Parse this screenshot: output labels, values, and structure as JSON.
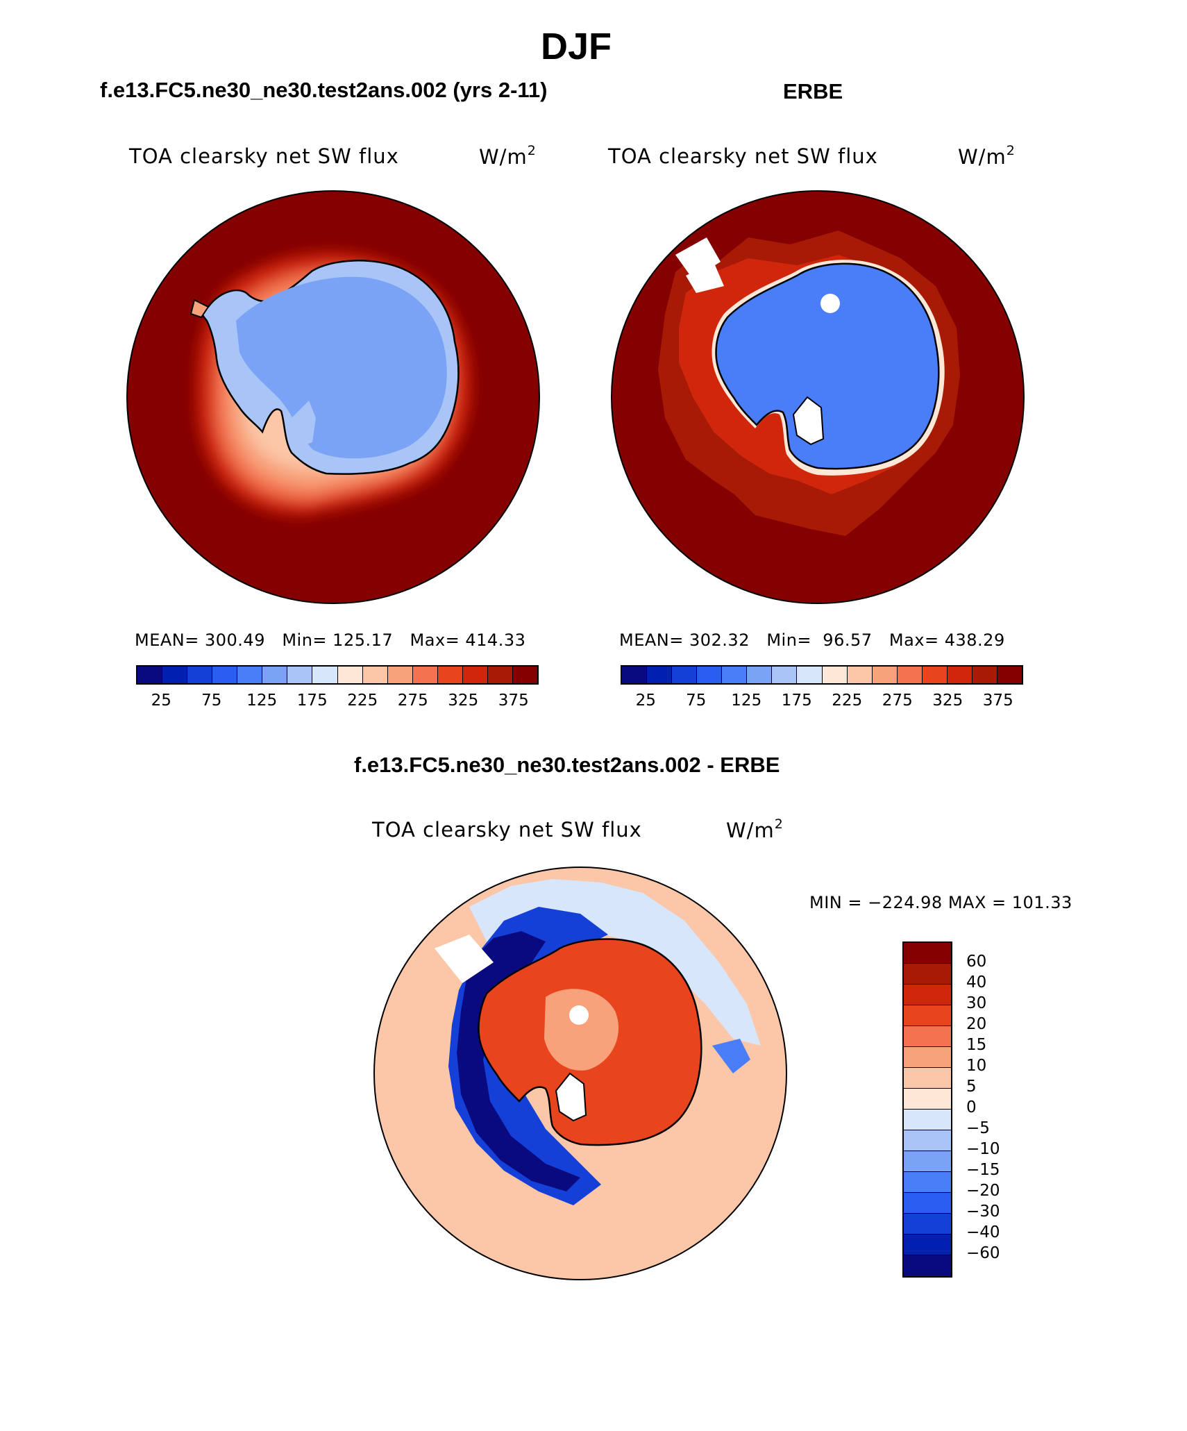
{
  "title": "DJF",
  "panels": {
    "left": {
      "heading": "f.e13.FC5.ne30_ne30.test2ans.002 (yrs 2-11)",
      "variable": "TOA clearsky net SW flux",
      "units": "W/m",
      "units_exp": "2",
      "stats_line": "MEAN= 300.49   Min= 125.17   Max= 414.33",
      "mean": 300.49,
      "min": 125.17,
      "max": 414.33
    },
    "right": {
      "heading": "ERBE",
      "variable": "TOA clearsky net SW flux",
      "units": "W/m",
      "units_exp": "2",
      "stats_line": "MEAN= 302.32   Min=  96.57   Max= 438.29",
      "mean": 302.32,
      "min": 96.57,
      "max": 438.29
    },
    "diff": {
      "heading": "f.e13.FC5.ne30_ne30.test2ans.002 - ERBE",
      "variable": "TOA clearsky net SW flux",
      "units": "W/m",
      "units_exp": "2",
      "minmax_line": "MIN = −224.98 MAX = 101.33",
      "min": -224.98,
      "max": 101.33
    }
  },
  "colorbar_abs": {
    "colors": [
      "#0a0a80",
      "#0020b0",
      "#1440d8",
      "#2a5ef0",
      "#4a7ef8",
      "#7aa3f5",
      "#a9c4f6",
      "#d8e6fb",
      "#fde7d6",
      "#fbc7a8",
      "#f8a27c",
      "#f37350",
      "#e8451e",
      "#d0260c",
      "#a71a06",
      "#850000"
    ],
    "tick_labels": [
      "25",
      "75",
      "125",
      "175",
      "225",
      "275",
      "325",
      "375"
    ]
  },
  "colorbar_diff": {
    "colors": [
      "#850000",
      "#a71a06",
      "#d0260c",
      "#e8451e",
      "#f37350",
      "#f8a27c",
      "#fbc7a8",
      "#fde7d6",
      "#d8e6fb",
      "#a9c4f6",
      "#7aa3f5",
      "#4a7ef8",
      "#2a5ef0",
      "#1440d8",
      "#0020b0",
      "#0a0a80"
    ],
    "tick_labels": [
      "60",
      "40",
      "30",
      "20",
      "15",
      "10",
      "5",
      "0",
      "−5",
      "−10",
      "−15",
      "−20",
      "−30",
      "−40",
      "−60"
    ]
  }
}
